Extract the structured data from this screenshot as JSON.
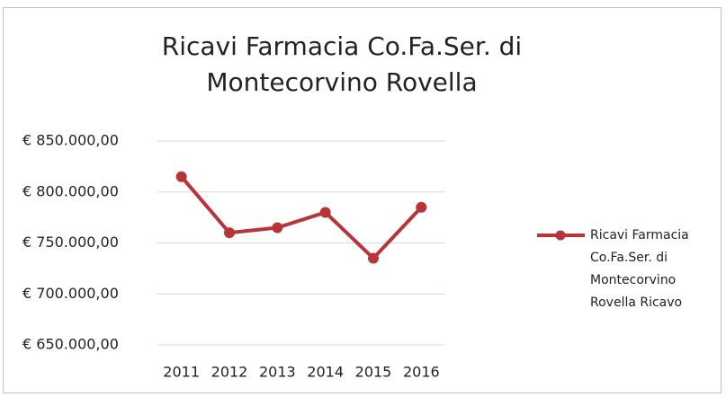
{
  "chart_data": {
    "type": "line",
    "title": "Ricavi Farmacia Co.Fa.Ser. di Montecorvino Rovella",
    "categories": [
      "2011",
      "2012",
      "2013",
      "2014",
      "2015",
      "2016"
    ],
    "series": [
      {
        "name": "Ricavi Farmacia Co.Fa.Ser. di Montecorvino Rovella Ricavo",
        "color": "#b8333a",
        "values": [
          815000,
          760000,
          765000,
          780000,
          735000,
          785000
        ]
      }
    ],
    "ylim": [
      650000,
      850000
    ],
    "yticks": [
      {
        "value": 650000,
        "label": "€ 650.000,00"
      },
      {
        "value": 700000,
        "label": "€ 700.000,00"
      },
      {
        "value": 750000,
        "label": "€ 750.000,00"
      },
      {
        "value": 800000,
        "label": "€ 800.000,00"
      },
      {
        "value": 850000,
        "label": "€ 850.000,00"
      }
    ],
    "grid": true,
    "legend": "right"
  }
}
